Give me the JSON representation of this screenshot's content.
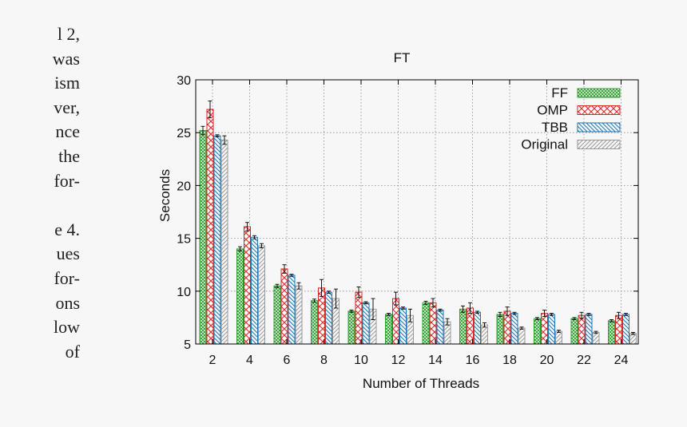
{
  "side_text": [
    "l 2,",
    "was",
    "ism",
    "ver,",
    "nce",
    "the",
    "for-",
    "",
    "e 4.",
    "ues",
    "for-",
    "ons",
    "low",
    "of"
  ],
  "colors": {
    "FF": "#2ca02c",
    "OMP": "#d62728",
    "TBB": "#1f77b4",
    "Original": "#9a9a9a"
  },
  "chart_data": {
    "type": "bar",
    "title": "FT",
    "xlabel": "Number of Threads",
    "ylabel": "Seconds",
    "ylim": [
      5,
      30
    ],
    "yticks": [
      5,
      10,
      15,
      20,
      25,
      30
    ],
    "grid": true,
    "legend_position": "top-right",
    "categories": [
      "2",
      "4",
      "6",
      "8",
      "10",
      "12",
      "14",
      "16",
      "18",
      "20",
      "22",
      "24"
    ],
    "series": [
      {
        "name": "FF",
        "values": [
          25.2,
          14.0,
          10.5,
          9.1,
          8.1,
          7.8,
          8.9,
          8.3,
          7.8,
          7.4,
          7.4,
          7.2
        ],
        "errors": [
          0.4,
          0.2,
          0.15,
          0.15,
          0.1,
          0.1,
          0.15,
          0.3,
          0.2,
          0.1,
          0.1,
          0.1
        ]
      },
      {
        "name": "OMP",
        "values": [
          27.2,
          16.1,
          12.1,
          10.3,
          9.9,
          9.3,
          8.9,
          8.4,
          8.1,
          7.9,
          7.7,
          7.7
        ],
        "errors": [
          0.8,
          0.4,
          0.4,
          0.8,
          0.5,
          0.6,
          0.4,
          0.5,
          0.4,
          0.3,
          0.3,
          0.3
        ]
      },
      {
        "name": "TBB",
        "values": [
          24.7,
          15.1,
          11.5,
          9.9,
          8.9,
          8.4,
          8.2,
          8.0,
          7.9,
          7.8,
          7.8,
          7.8
        ],
        "errors": [
          0.1,
          0.15,
          0.1,
          0.1,
          0.1,
          0.1,
          0.1,
          0.1,
          0.1,
          0.1,
          0.1,
          0.1
        ]
      },
      {
        "name": "Original",
        "values": [
          24.3,
          14.3,
          10.5,
          9.3,
          8.3,
          7.7,
          7.1,
          6.8,
          6.5,
          6.2,
          6.1,
          6.0
        ],
        "errors": [
          0.4,
          0.2,
          0.3,
          0.9,
          1.0,
          0.6,
          0.3,
          0.2,
          0.1,
          0.1,
          0.1,
          0.1
        ]
      }
    ]
  }
}
